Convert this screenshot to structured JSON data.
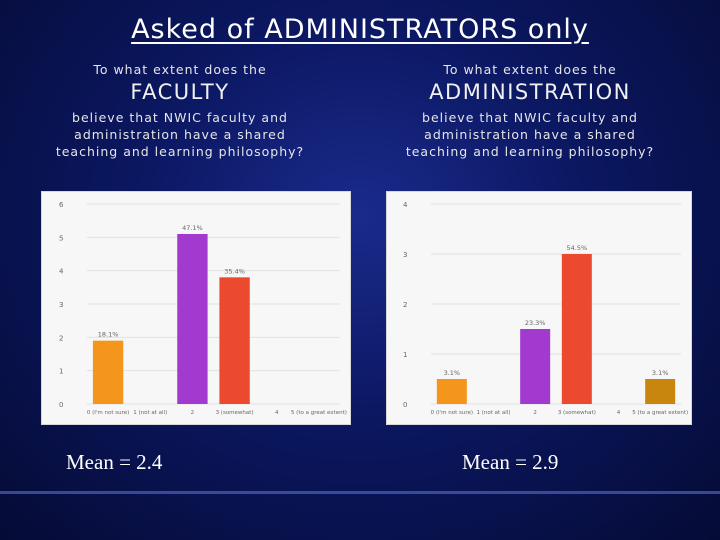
{
  "slide": {
    "title": "Asked of ADMINISTRATORS only",
    "left": {
      "intro": "To what extent does the",
      "subject": "FACULTY",
      "question_line1": "believe that NWIC faculty and",
      "question_line2": "administration have a shared",
      "question_line3": "teaching and learning philosophy?",
      "mean": "Mean = 2.4"
    },
    "right": {
      "intro": "To what extent does the",
      "subject": "ADMINISTRATION",
      "question_line1": "believe that NWIC faculty and",
      "question_line2": "administration have a shared",
      "question_line3": "teaching and learning philosophy?",
      "mean": "Mean = 2.9"
    }
  },
  "chart_data": [
    {
      "type": "bar",
      "categories": [
        "0 (I'm not sure)",
        "1 (not at all)",
        "2",
        "3 (somewhat)",
        "4",
        "5 (to a great extent)"
      ],
      "values": [
        1.9,
        0,
        5.1,
        3.8,
        0,
        0
      ],
      "data_labels": [
        "18.1%",
        "",
        "47.1%",
        "35.4%",
        "",
        ""
      ],
      "colors": [
        "#f5961c",
        "#f5961c",
        "#a23ad0",
        "#ec4a2e",
        "#ec4a2e",
        "#c8860e"
      ],
      "ylim": [
        0,
        6
      ],
      "yticks": [
        "0",
        "1",
        "2",
        "3",
        "4",
        "5",
        "6"
      ],
      "grid": true
    },
    {
      "type": "bar",
      "categories": [
        "0 (I'm not sure)",
        "1 (not at all)",
        "2",
        "3 (somewhat)",
        "4",
        "5 (to a great extent)"
      ],
      "values": [
        0.5,
        0,
        1.5,
        3.0,
        0,
        0.5
      ],
      "data_labels": [
        "3.1%",
        "",
        "23.3%",
        "54.5%",
        "",
        "3.1%"
      ],
      "colors": [
        "#f5961c",
        "#f5961c",
        "#a23ad0",
        "#ec4a2e",
        "#ec4a2e",
        "#c8860e"
      ],
      "ylim": [
        0,
        4
      ],
      "yticks": [
        "0",
        "1",
        "2",
        "3",
        "4"
      ],
      "grid": true
    }
  ]
}
